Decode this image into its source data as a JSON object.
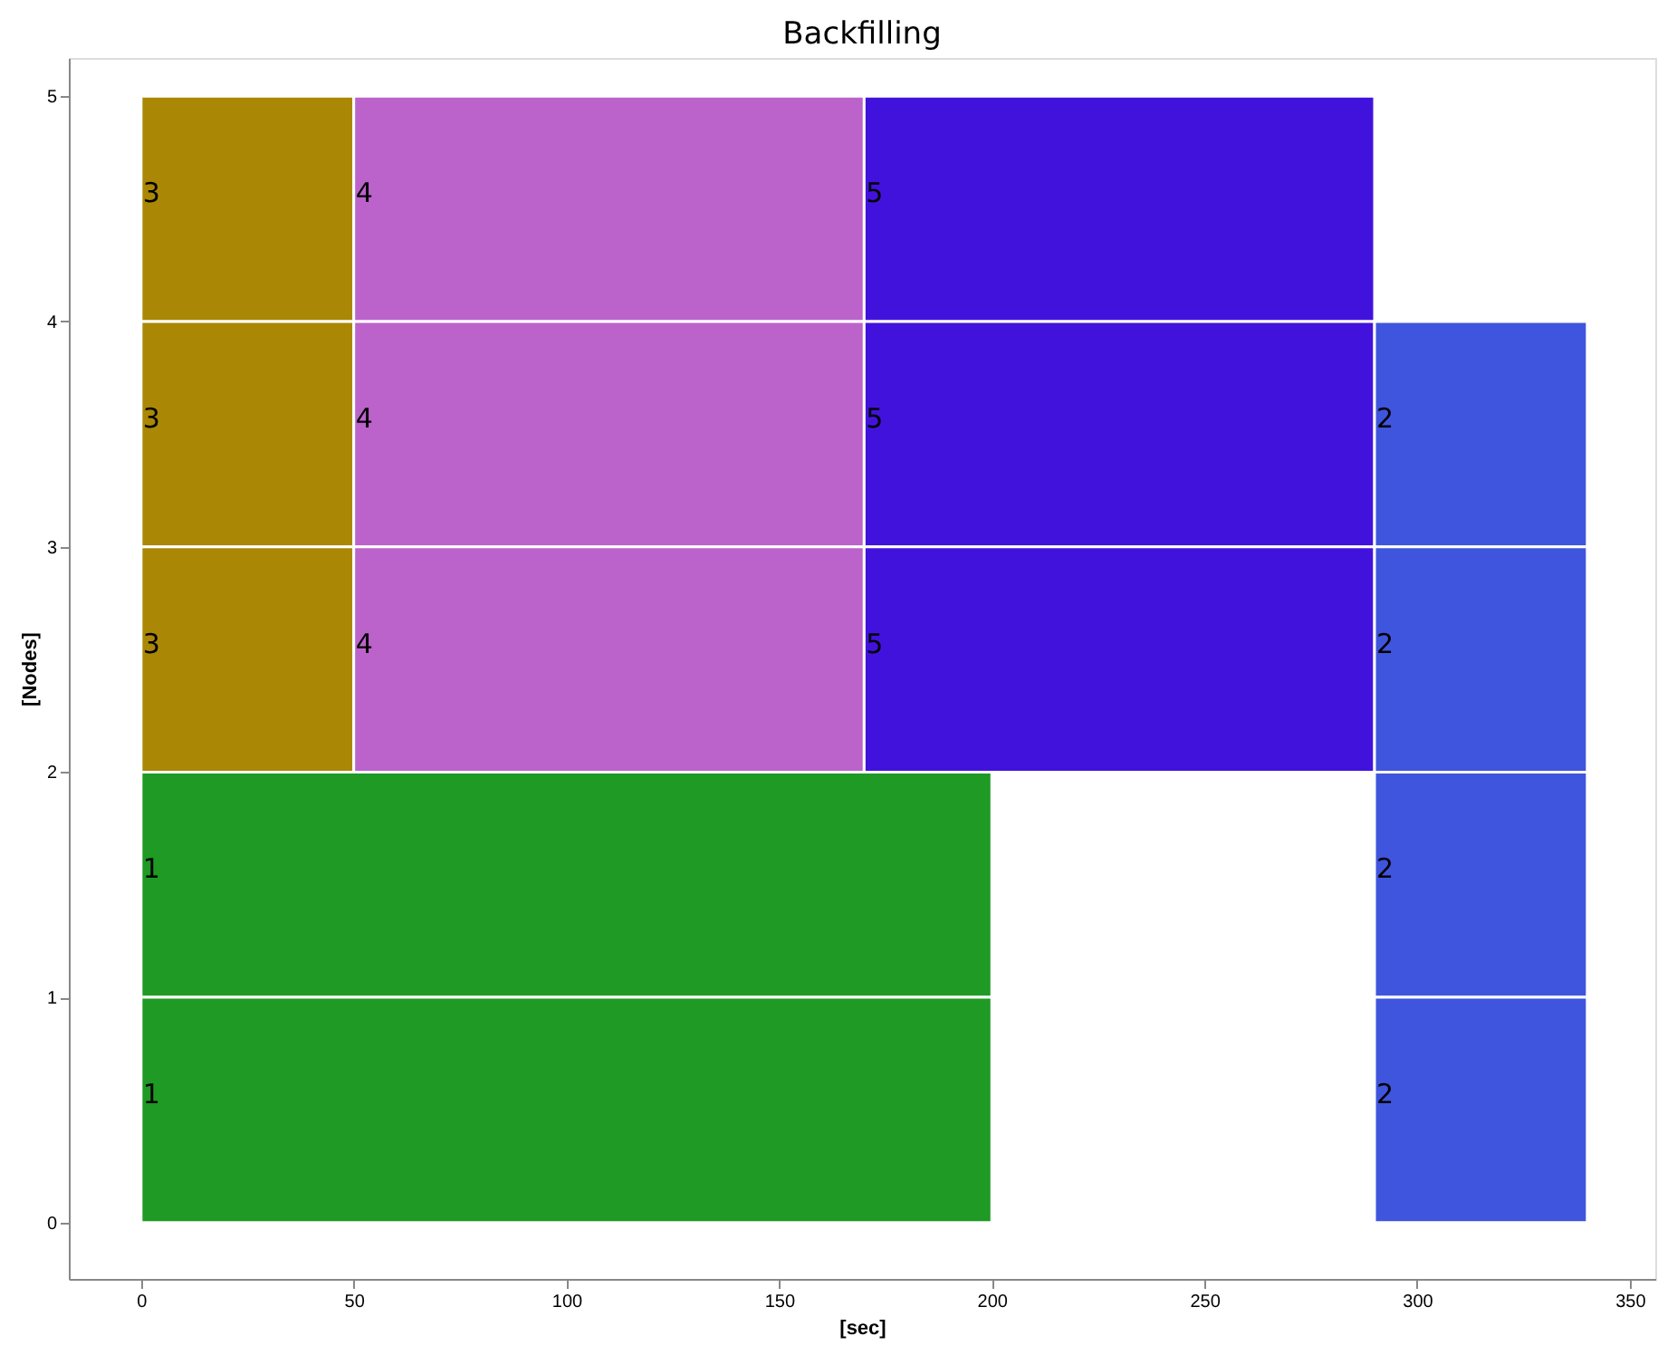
{
  "chart_data": {
    "type": "bar",
    "orientation": "horizontal",
    "title": "Backfilling",
    "xlabel": "[sec]",
    "ylabel": "[Nodes]",
    "x": [
      4.5,
      3.5,
      2.5,
      1.5,
      0.5
    ],
    "series": [
      {
        "name": "3",
        "color": "#aa8806",
        "base": [
          0,
          0,
          0,
          null,
          null
        ],
        "values": [
          50,
          50,
          50,
          null,
          null
        ]
      },
      {
        "name": "4",
        "color": "#bb63cb",
        "base": [
          50,
          50,
          50,
          null,
          null
        ],
        "values": [
          120,
          120,
          120,
          null,
          null
        ]
      },
      {
        "name": "5",
        "color": "#4212dd",
        "base": [
          170,
          170,
          170,
          null,
          null
        ],
        "values": [
          120,
          120,
          120,
          null,
          null
        ]
      },
      {
        "name": "1",
        "color": "#1f9a24",
        "base": [
          null,
          null,
          null,
          0,
          0
        ],
        "values": [
          null,
          null,
          null,
          200,
          200
        ]
      },
      {
        "name": "2",
        "color": "#3f55dd",
        "base": [
          null,
          290,
          290,
          290,
          290
        ],
        "values": [
          null,
          50,
          50,
          50,
          50
        ]
      }
    ],
    "xlim": [
      -17,
      356
    ],
    "xticks": [
      0,
      50,
      100,
      150,
      200,
      250,
      300,
      350
    ],
    "ylim": [
      -0.25,
      5.17
    ],
    "yticks": [
      0,
      1,
      2,
      3,
      4,
      5
    ],
    "grid": false,
    "legend": false
  }
}
